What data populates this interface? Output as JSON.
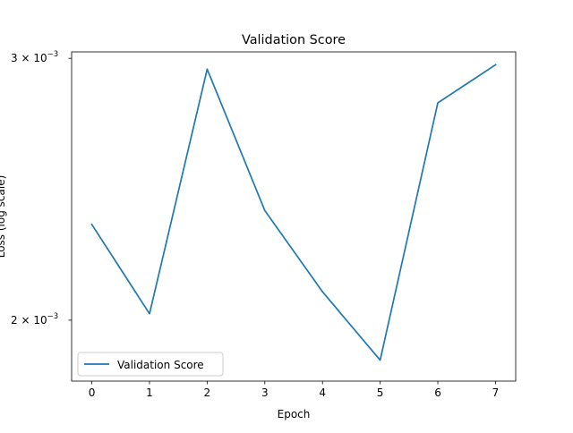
{
  "chart_data": {
    "type": "line",
    "title": "Validation Score",
    "xlabel": "Epoch",
    "ylabel": "Loss (log scale)",
    "y_scale": "log",
    "ylim": [
      0.00182,
      0.00303
    ],
    "xlim": [
      -0.35,
      7.35
    ],
    "x_ticks": [
      0,
      1,
      2,
      3,
      4,
      5,
      6,
      7
    ],
    "y_ticks": [
      {
        "value": 0.002,
        "label": "2 × 10",
        "exp": "−3"
      },
      {
        "value": 0.003,
        "label": "3 × 10",
        "exp": "−3"
      }
    ],
    "grid": false,
    "legend_position": "lower-left",
    "series": [
      {
        "name": "Validation Score",
        "color": "#1f77b4",
        "x": [
          0,
          1,
          2,
          3,
          4,
          5,
          6,
          7
        ],
        "values": [
          0.00232,
          0.00202,
          0.00295,
          0.00237,
          0.00209,
          0.00188,
          0.0028,
          0.00297
        ]
      }
    ]
  }
}
